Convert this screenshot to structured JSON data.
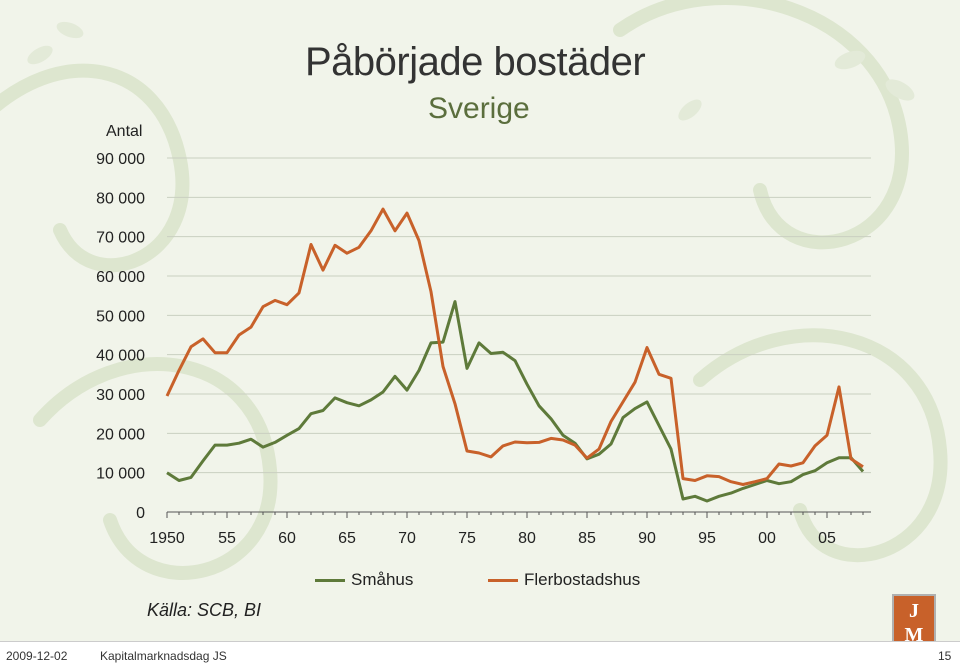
{
  "slide": {
    "title": "Påbörjade bostäder",
    "subtitle": "Sverige",
    "source": "Källa: SCB, BI",
    "date": "2009-12-02",
    "footer_label": "Kapitalmarknadsdag JS",
    "page_number": "15",
    "logo_text": [
      "J",
      "M"
    ]
  },
  "colors": {
    "smahus": "#5e7a3a",
    "flerbostadshus": "#c8612a",
    "background": "#f1f4ea",
    "logo": "#c8612a"
  },
  "chart_data": {
    "type": "line",
    "title": "Påbörjade bostäder",
    "subtitle": "Sverige",
    "ylabel": "Antal",
    "xlabel": "",
    "ylim": [
      0,
      90000
    ],
    "yticks": [
      0,
      10000,
      20000,
      30000,
      40000,
      50000,
      60000,
      70000,
      80000,
      90000
    ],
    "ytick_labels": [
      "0",
      "10 000",
      "20 000",
      "30 000",
      "40 000",
      "50 000",
      "60 000",
      "70 000",
      "80 000",
      "90 000"
    ],
    "xlim": [
      1950,
      2008
    ],
    "xticks": [
      1950,
      1955,
      1960,
      1965,
      1970,
      1975,
      1980,
      1985,
      1990,
      1995,
      2000,
      2005
    ],
    "xtick_labels": [
      "1950",
      "55",
      "60",
      "65",
      "70",
      "75",
      "80",
      "85",
      "90",
      "95",
      "00",
      "05"
    ],
    "grid": true,
    "legend_position": "bottom",
    "x": [
      1950,
      1951,
      1952,
      1953,
      1954,
      1955,
      1956,
      1957,
      1958,
      1959,
      1960,
      1961,
      1962,
      1963,
      1964,
      1965,
      1966,
      1967,
      1968,
      1969,
      1970,
      1971,
      1972,
      1973,
      1974,
      1975,
      1976,
      1977,
      1978,
      1979,
      1980,
      1981,
      1982,
      1983,
      1984,
      1985,
      1986,
      1987,
      1988,
      1989,
      1990,
      1991,
      1992,
      1993,
      1994,
      1995,
      1996,
      1997,
      1998,
      1999,
      2000,
      2001,
      2002,
      2003,
      2004,
      2005,
      2006,
      2007,
      2008
    ],
    "series": [
      {
        "name": "Småhus",
        "values": [
          10000,
          8000,
          8800,
          13000,
          17000,
          17000,
          17500,
          18500,
          16500,
          17700,
          19500,
          21200,
          25000,
          25800,
          29000,
          27800,
          27000,
          28500,
          30500,
          34500,
          31000,
          36000,
          43000,
          43200,
          53500,
          36500,
          43000,
          40300,
          40600,
          38500,
          32500,
          27000,
          23700,
          19500,
          17500,
          13500,
          14700,
          17300,
          24000,
          26300,
          28000,
          22000,
          16000,
          3300,
          4000,
          2800,
          4000,
          4800,
          6000,
          7000,
          8000,
          7200,
          7700,
          9500,
          10500,
          12500,
          13800,
          13800,
          10300
        ]
      },
      {
        "name": "Flerbostadshus",
        "values": [
          29500,
          36000,
          42000,
          44000,
          40500,
          40500,
          45000,
          47000,
          52200,
          53800,
          52700,
          55700,
          68000,
          61500,
          67800,
          65800,
          67300,
          71500,
          77000,
          71500,
          76000,
          69000,
          56000,
          37000,
          27500,
          15500,
          15000,
          14000,
          16800,
          17800,
          17600,
          17700,
          18700,
          18300,
          17000,
          13700,
          16000,
          23000,
          28000,
          33000,
          41800,
          35000,
          34000,
          8500,
          8000,
          9200,
          9000,
          7700,
          7000,
          7700,
          8500,
          12200,
          11700,
          12500,
          16800,
          19500,
          31800,
          13500,
          11500
        ]
      }
    ]
  }
}
